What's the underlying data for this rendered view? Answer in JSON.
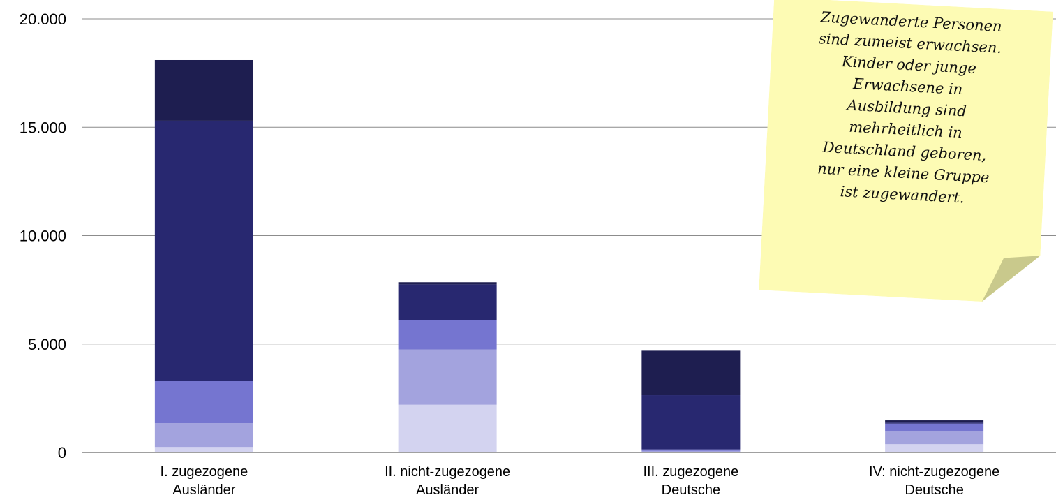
{
  "chart_data": {
    "type": "bar",
    "stacked": true,
    "categories": [
      [
        "I. zugezogene",
        "Ausländer"
      ],
      [
        "II. nicht-zugezogene",
        "Ausländer"
      ],
      [
        "III. zugezogene",
        "Deutsche"
      ],
      [
        "IV: nicht-zugezogene",
        "Deutsche"
      ]
    ],
    "series": [
      {
        "color": "#d3d3f0",
        "values": [
          250,
          2200,
          30,
          380
        ]
      },
      {
        "color": "#a3a3de",
        "values": [
          1100,
          2550,
          40,
          600
        ]
      },
      {
        "color": "#7575d0",
        "values": [
          1950,
          1350,
          70,
          350
        ]
      },
      {
        "color": "#282870",
        "values": [
          12000,
          1650,
          2500,
          50
        ]
      },
      {
        "color": "#1e1e50",
        "values": [
          2800,
          100,
          2050,
          100
        ]
      }
    ],
    "ylim": [
      0,
      20000
    ],
    "yticks": [
      "0",
      "5.000",
      "10.000",
      "15.000",
      "20.000"
    ],
    "grid": true,
    "title": "",
    "xlabel": "",
    "ylabel": ""
  },
  "note": {
    "color": "#fdfbb4",
    "fold_color": "#c9c98c",
    "lines": [
      "Zugewanderte Personen",
      "sind zumeist erwachsen.",
      "Kinder oder junge",
      "Erwachsene in",
      "Ausbildung sind",
      "mehrheitlich in",
      "Deutschland geboren,",
      "nur eine kleine Gruppe",
      "ist zugewandert."
    ]
  }
}
